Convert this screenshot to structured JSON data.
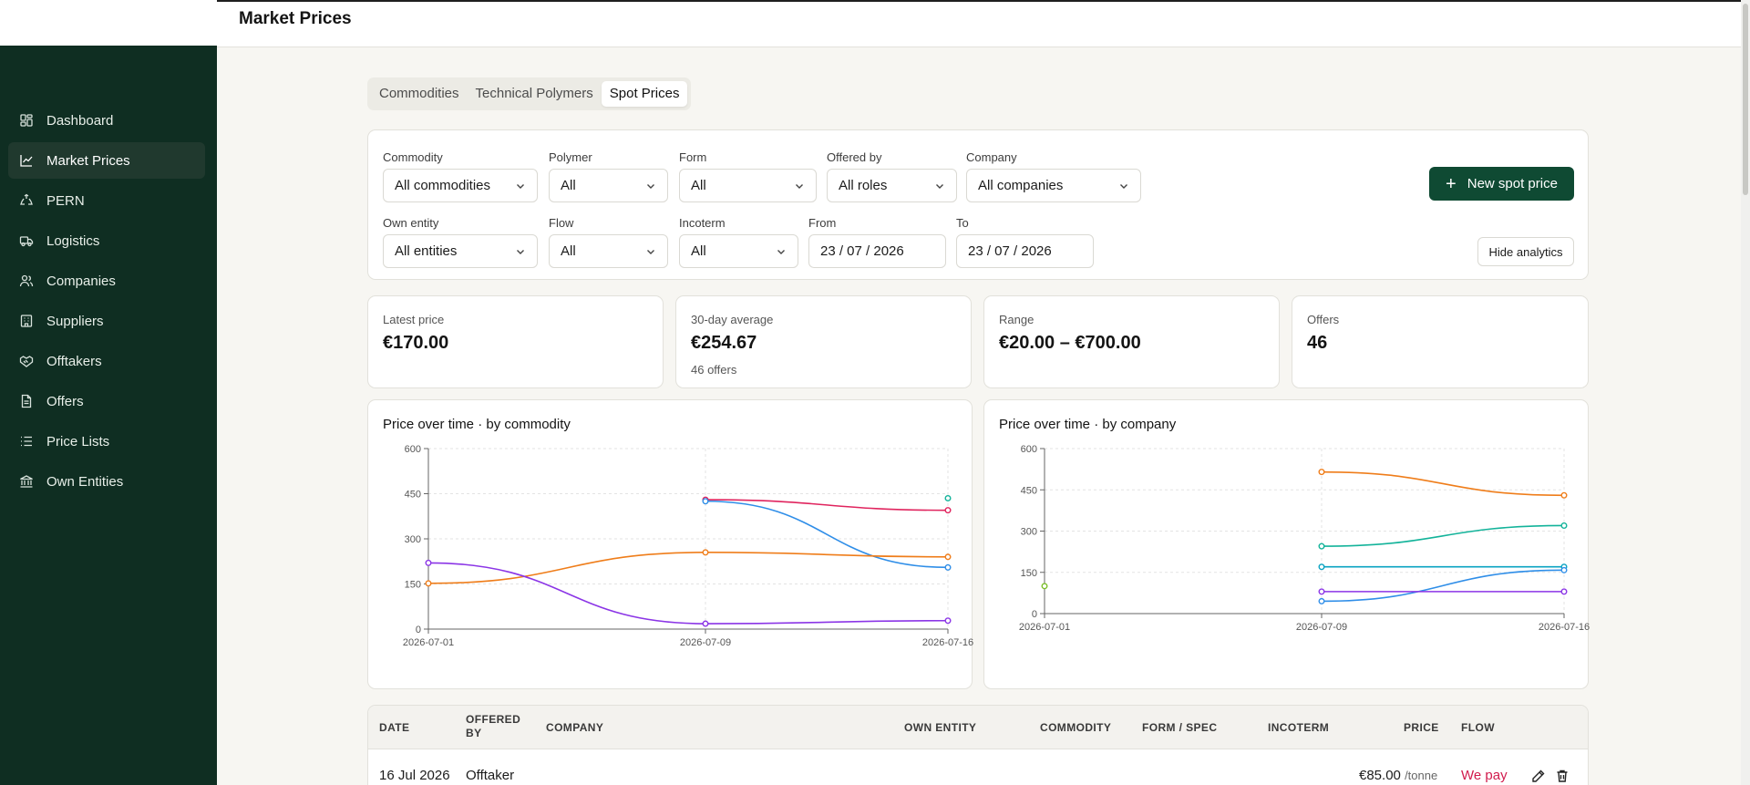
{
  "header": {
    "title": "Market Prices"
  },
  "sidebar": {
    "items": [
      {
        "label": "Dashboard",
        "icon": "dashboard-icon"
      },
      {
        "label": "Market Prices",
        "icon": "line-chart-icon",
        "active": true
      },
      {
        "label": "PERN",
        "icon": "recycle-icon"
      },
      {
        "label": "Logistics",
        "icon": "truck-icon"
      },
      {
        "label": "Companies",
        "icon": "users-icon"
      },
      {
        "label": "Suppliers",
        "icon": "building-icon"
      },
      {
        "label": "Offtakers",
        "icon": "handshake-icon"
      },
      {
        "label": "Offers",
        "icon": "document-icon"
      },
      {
        "label": "Price Lists",
        "icon": "list-icon"
      },
      {
        "label": "Own Entities",
        "icon": "bank-icon"
      }
    ]
  },
  "tabs": [
    {
      "label": "Commodities"
    },
    {
      "label": "Technical Polymers"
    },
    {
      "label": "Spot Prices",
      "active": true
    }
  ],
  "filters": {
    "commodity": {
      "label": "Commodity",
      "value": "All commodities"
    },
    "polymer": {
      "label": "Polymer",
      "value": "All"
    },
    "form": {
      "label": "Form",
      "value": "All"
    },
    "offered_by": {
      "label": "Offered by",
      "value": "All roles"
    },
    "company": {
      "label": "Company",
      "value": "All companies"
    },
    "own_entity": {
      "label": "Own entity",
      "value": "All entities"
    },
    "flow": {
      "label": "Flow",
      "value": "All"
    },
    "incoterm": {
      "label": "Incoterm",
      "value": "All"
    },
    "from": {
      "label": "From",
      "value": "23 / 07 / 2026"
    },
    "to": {
      "label": "To",
      "value": "23 / 07 / 2026"
    },
    "new_button": "New spot price",
    "hide_button": "Hide analytics"
  },
  "stats": {
    "latest": {
      "label": "Latest price",
      "value": "€170.00"
    },
    "average": {
      "label": "30-day average",
      "value": "€254.67",
      "sub": "46 offers"
    },
    "range": {
      "label": "Range",
      "value": "€20.00 – €700.00"
    },
    "offers": {
      "label": "Offers",
      "value": "46"
    }
  },
  "chart_data": [
    {
      "type": "line",
      "title": "Price over time · by commodity",
      "x": [
        "2026-07-01",
        "2026-07-09",
        "2026-07-16"
      ],
      "yticks": [
        0,
        150,
        300,
        450,
        600
      ],
      "ylim": [
        0,
        600
      ],
      "grid": true,
      "series": [
        {
          "color": "#e0245e",
          "points": [
            [
              "2026-07-09",
              430
            ],
            [
              "2026-07-16",
              395
            ]
          ]
        },
        {
          "color": "#2f8ee8",
          "points": [
            [
              "2026-07-09",
              425
            ],
            [
              "2026-07-16",
              205
            ]
          ]
        },
        {
          "color": "#ef7d1a",
          "points": [
            [
              "2026-07-01",
              152
            ],
            [
              "2026-07-09",
              255
            ],
            [
              "2026-07-16",
              240
            ]
          ]
        },
        {
          "color": "#8b35e6",
          "points": [
            [
              "2026-07-01",
              220
            ],
            [
              "2026-07-09",
              18
            ],
            [
              "2026-07-16",
              28
            ]
          ]
        },
        {
          "color": "#13b39a",
          "points": [
            [
              "2026-07-16",
              435
            ]
          ]
        }
      ]
    },
    {
      "type": "line",
      "title": "Price over time · by company",
      "x": [
        "2026-07-01",
        "2026-07-09",
        "2026-07-16"
      ],
      "yticks": [
        0,
        150,
        300,
        450,
        600
      ],
      "ylim": [
        0,
        600
      ],
      "grid": true,
      "series": [
        {
          "color": "#ef7d1a",
          "points": [
            [
              "2026-07-09",
              515
            ],
            [
              "2026-07-16",
              430
            ]
          ]
        },
        {
          "color": "#13b39a",
          "points": [
            [
              "2026-07-09",
              245
            ],
            [
              "2026-07-16",
              320
            ]
          ]
        },
        {
          "color": "#0aa3c2",
          "points": [
            [
              "2026-07-09",
              170
            ],
            [
              "2026-07-16",
              170
            ]
          ]
        },
        {
          "color": "#2f8ee8",
          "points": [
            [
              "2026-07-09",
              45
            ],
            [
              "2026-07-16",
              158
            ]
          ]
        },
        {
          "color": "#8b35e6",
          "points": [
            [
              "2026-07-09",
              80
            ],
            [
              "2026-07-16",
              80
            ]
          ]
        },
        {
          "color": "#7bbf2a",
          "points": [
            [
              "2026-07-01",
              100
            ]
          ]
        }
      ]
    }
  ],
  "table": {
    "columns": [
      "DATE",
      "OFFERED BY",
      "COMPANY",
      "OWN ENTITY",
      "COMMODITY",
      "FORM / SPEC",
      "INCOTERM",
      "PRICE",
      "FLOW"
    ],
    "rows": [
      {
        "date": "16 Jul 2026",
        "offered_by": "Offtaker",
        "price": "€85.00",
        "unit": "/tonne",
        "flow": "We pay"
      }
    ]
  }
}
